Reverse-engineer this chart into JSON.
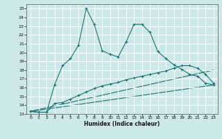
{
  "title": "",
  "xlabel": "Humidex (Indice chaleur)",
  "ylabel": "",
  "background_color": "#cce8e8",
  "grid_color": "#ffffff",
  "line_color": "#1a7070",
  "xlim": [
    -0.5,
    23.5
  ],
  "ylim": [
    13,
    25.5
  ],
  "xticks": [
    0,
    1,
    2,
    3,
    4,
    5,
    6,
    7,
    8,
    9,
    10,
    11,
    12,
    13,
    14,
    15,
    16,
    17,
    18,
    19,
    20,
    21,
    22,
    23
  ],
  "yticks": [
    13,
    14,
    15,
    16,
    17,
    18,
    19,
    20,
    21,
    22,
    23,
    24,
    25
  ],
  "line1_x": [
    0,
    1,
    2,
    3,
    4,
    5,
    6,
    7,
    8,
    9,
    10,
    11,
    12,
    13,
    14,
    15,
    16,
    17,
    18,
    19,
    20,
    21,
    22,
    23
  ],
  "line1_y": [
    13.3,
    13.2,
    13.2,
    16.3,
    18.5,
    19.3,
    20.8,
    25.0,
    23.2,
    20.2,
    19.8,
    19.5,
    21.2,
    23.2,
    23.2,
    22.3,
    20.1,
    19.3,
    18.6,
    18.1,
    17.5,
    17.3,
    16.5,
    16.3
  ],
  "line2_x": [
    0,
    1,
    2,
    3,
    4,
    5,
    6,
    7,
    8,
    9,
    10,
    11,
    12,
    13,
    14,
    15,
    16,
    17,
    18,
    19,
    20,
    21,
    22,
    23
  ],
  "line2_y": [
    13.3,
    13.2,
    13.2,
    14.2,
    14.3,
    14.7,
    15.1,
    15.5,
    15.9,
    16.2,
    16.4,
    16.6,
    16.9,
    17.1,
    17.3,
    17.5,
    17.7,
    17.9,
    18.2,
    18.5,
    18.5,
    18.2,
    17.5,
    16.5
  ],
  "line3_x": [
    0,
    23
  ],
  "line3_y": [
    13.3,
    16.3
  ],
  "line4_x": [
    0,
    23
  ],
  "line4_y": [
    13.3,
    18.0
  ]
}
